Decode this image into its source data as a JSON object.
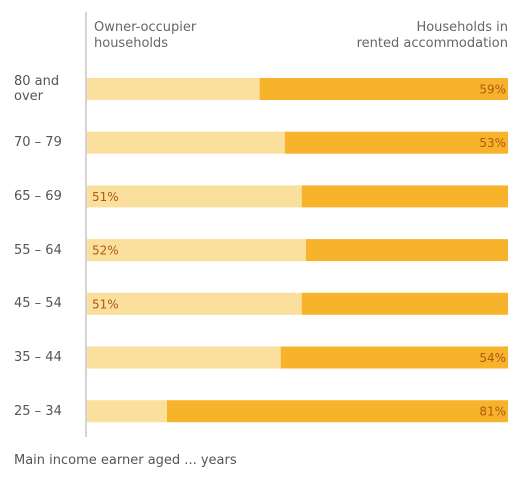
{
  "colors": {
    "owner": "#fbdf9c",
    "renter": "#f7b32b",
    "label_text": "#b05a10",
    "axis": "#aaaaaa"
  },
  "headers": {
    "left": "Owner-occupier\nhouseholds",
    "right": "Households in\nrented accommodation"
  },
  "footnote": "Main income earner aged ... years",
  "chart_data": {
    "type": "bar",
    "orientation": "horizontal-stacked-100",
    "title": "",
    "xlabel": "",
    "ylabel": "Main income earner aged ... years",
    "categories": [
      "80 and\nover",
      "70 – 79",
      "65 – 69",
      "55 – 64",
      "45 – 54",
      "35 – 44",
      "25 – 34"
    ],
    "series": [
      {
        "name": "Owner-occupier households",
        "values": [
          41,
          47,
          51,
          52,
          51,
          46,
          19
        ]
      },
      {
        "name": "Households in rented accommodation",
        "values": [
          59,
          53,
          49,
          48,
          49,
          54,
          81
        ]
      }
    ],
    "labels": [
      "59%",
      "53%",
      "51%",
      "52%",
      "51%",
      "54%",
      "81%"
    ],
    "labeled_series": [
      1,
      1,
      0,
      0,
      0,
      1,
      1
    ],
    "xlim": [
      0,
      100
    ],
    "grid": false,
    "legend": "top"
  }
}
